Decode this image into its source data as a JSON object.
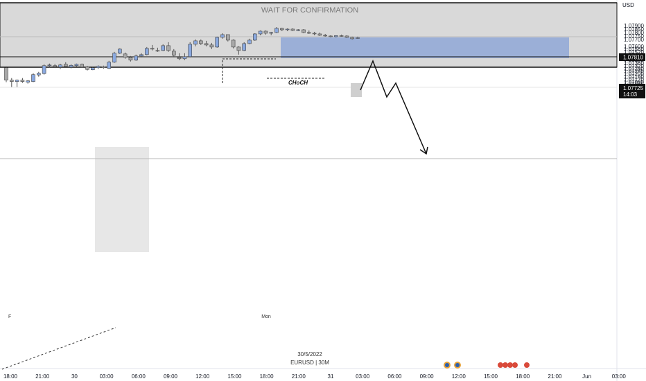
{
  "symbol_info": "EURUSD | 30M",
  "date_label": "30/5/2022",
  "banner_text": "WAIT FOR CONFIRMATION",
  "currency": "USD",
  "choch_label": "CHoCH",
  "day_marker": "Mon",
  "f_marker": "F",
  "current_price_label": "1.07725",
  "countdown_label": "14:03",
  "level_label": "1.07810",
  "colors": {
    "bullish": "#8aa9e0",
    "bearish": "#a8a8a8",
    "zone_grey": "#d2d2d2",
    "zone_blue": "#8fa7d6",
    "line": "#111111"
  },
  "chart_data": {
    "type": "candlestick",
    "title": "",
    "xlabel": "",
    "ylabel": "",
    "ylim": [
      1.06925,
      1.07955
    ],
    "y_ticks": [
      "1.07900",
      "1.07850",
      "1.07800",
      "1.07750",
      "1.07700",
      "1.07600",
      "1.07560",
      "1.07520",
      "1.07480",
      "1.07440",
      "1.07400",
      "1.07360",
      "1.07320",
      "1.07280",
      "1.07240",
      "1.07200",
      "1.07160",
      "1.07120",
      "1.07080",
      "1.07045",
      "1.07010",
      "1.06975",
      "1.06943"
    ],
    "x_ticks": [
      "18:00",
      "21:00",
      "30",
      "03:00",
      "06:00",
      "09:00",
      "12:00",
      "15:00",
      "18:00",
      "21:00",
      "31",
      "03:00",
      "06:00",
      "09:00",
      "12:00",
      "15:00",
      "18:00",
      "21:00",
      "Jun",
      "03:00"
    ],
    "grid": false,
    "candles": [
      {
        "o": 1.0729,
        "h": 1.0731,
        "l": 1.0708,
        "c": 1.0711
      },
      {
        "o": 1.0711,
        "h": 1.0714,
        "l": 1.0701,
        "c": 1.0709
      },
      {
        "o": 1.0709,
        "h": 1.0712,
        "l": 1.0701,
        "c": 1.0711
      },
      {
        "o": 1.0711,
        "h": 1.0714,
        "l": 1.0707,
        "c": 1.0709
      },
      {
        "o": 1.0708,
        "h": 1.0711,
        "l": 1.0706,
        "c": 1.071
      },
      {
        "o": 1.0709,
        "h": 1.0721,
        "l": 1.0708,
        "c": 1.0719
      },
      {
        "o": 1.07185,
        "h": 1.0723,
        "l": 1.0716,
        "c": 1.0721
      },
      {
        "o": 1.07205,
        "h": 1.0734,
        "l": 1.0719,
        "c": 1.0732
      },
      {
        "o": 1.0732,
        "h": 1.0735,
        "l": 1.0729,
        "c": 1.0733
      },
      {
        "o": 1.0732,
        "h": 1.07345,
        "l": 1.07285,
        "c": 1.07305
      },
      {
        "o": 1.073,
        "h": 1.07345,
        "l": 1.0727,
        "c": 1.0733
      },
      {
        "o": 1.0734,
        "h": 1.0737,
        "l": 1.073,
        "c": 1.0731
      },
      {
        "o": 1.073,
        "h": 1.0734,
        "l": 1.0728,
        "c": 1.07325
      },
      {
        "o": 1.0732,
        "h": 1.0735,
        "l": 1.073,
        "c": 1.0734
      },
      {
        "o": 1.0734,
        "h": 1.0735,
        "l": 1.0729,
        "c": 1.073
      },
      {
        "o": 1.073,
        "h": 1.07315,
        "l": 1.0725,
        "c": 1.07265
      },
      {
        "o": 1.0726,
        "h": 1.073,
        "l": 1.07255,
        "c": 1.0729
      },
      {
        "o": 1.0729,
        "h": 1.07325,
        "l": 1.0727,
        "c": 1.0731
      },
      {
        "o": 1.07305,
        "h": 1.0732,
        "l": 1.07275,
        "c": 1.0729
      },
      {
        "o": 1.0728,
        "h": 1.0739,
        "l": 1.0727,
        "c": 1.0737
      },
      {
        "o": 1.0737,
        "h": 1.0752,
        "l": 1.0736,
        "c": 1.075
      },
      {
        "o": 1.075,
        "h": 1.0757,
        "l": 1.0749,
        "c": 1.0756
      },
      {
        "o": 1.0749,
        "h": 1.0751,
        "l": 1.0742,
        "c": 1.0744
      },
      {
        "o": 1.0744,
        "h": 1.0746,
        "l": 1.0738,
        "c": 1.074
      },
      {
        "o": 1.074,
        "h": 1.0748,
        "l": 1.0739,
        "c": 1.0746
      },
      {
        "o": 1.0746,
        "h": 1.075,
        "l": 1.0744,
        "c": 1.0748
      },
      {
        "o": 1.0748,
        "h": 1.0759,
        "l": 1.0747,
        "c": 1.0757
      },
      {
        "o": 1.0757,
        "h": 1.0762,
        "l": 1.0754,
        "c": 1.0756
      },
      {
        "o": 1.0754,
        "h": 1.0758,
        "l": 1.0752,
        "c": 1.0753
      },
      {
        "o": 1.0754,
        "h": 1.0763,
        "l": 1.0753,
        "c": 1.0761
      },
      {
        "o": 1.0761,
        "h": 1.0766,
        "l": 1.0752,
        "c": 1.0754
      },
      {
        "o": 1.0753,
        "h": 1.0756,
        "l": 1.0744,
        "c": 1.0747
      },
      {
        "o": 1.0744,
        "h": 1.075,
        "l": 1.074,
        "c": 1.0742
      },
      {
        "o": 1.0742,
        "h": 1.075,
        "l": 1.074,
        "c": 1.0745
      },
      {
        "o": 1.0745,
        "h": 1.0766,
        "l": 1.0744,
        "c": 1.0763
      },
      {
        "o": 1.0763,
        "h": 1.077,
        "l": 1.076,
        "c": 1.0768
      },
      {
        "o": 1.0768,
        "h": 1.077,
        "l": 1.0762,
        "c": 1.0764
      },
      {
        "o": 1.0764,
        "h": 1.0768,
        "l": 1.076,
        "c": 1.0762
      },
      {
        "o": 1.0762,
        "h": 1.0765,
        "l": 1.0756,
        "c": 1.0759
      },
      {
        "o": 1.0759,
        "h": 1.0774,
        "l": 1.0758,
        "c": 1.0773
      },
      {
        "o": 1.0773,
        "h": 1.0779,
        "l": 1.0771,
        "c": 1.0777
      },
      {
        "o": 1.0777,
        "h": 1.0777,
        "l": 1.0767,
        "c": 1.0769
      },
      {
        "o": 1.0769,
        "h": 1.077,
        "l": 1.0757,
        "c": 1.0759
      },
      {
        "o": 1.0759,
        "h": 1.076,
        "l": 1.0748,
        "c": 1.0754
      },
      {
        "o": 1.0754,
        "h": 1.0766,
        "l": 1.0753,
        "c": 1.0764
      },
      {
        "o": 1.0764,
        "h": 1.0771,
        "l": 1.0763,
        "c": 1.0769
      },
      {
        "o": 1.0769,
        "h": 1.0779,
        "l": 1.0768,
        "c": 1.0778
      },
      {
        "o": 1.0778,
        "h": 1.0783,
        "l": 1.0776,
        "c": 1.0782
      },
      {
        "o": 1.0782,
        "h": 1.0783,
        "l": 1.0777,
        "c": 1.0779
      },
      {
        "o": 1.0779,
        "h": 1.0781,
        "l": 1.0776,
        "c": 1.078
      },
      {
        "o": 1.078,
        "h": 1.0788,
        "l": 1.0779,
        "c": 1.0786
      },
      {
        "o": 1.0786,
        "h": 1.0787,
        "l": 1.0782,
        "c": 1.0784
      },
      {
        "o": 1.0784,
        "h": 1.0786,
        "l": 1.0782,
        "c": 1.0785
      },
      {
        "o": 1.0785,
        "h": 1.0786,
        "l": 1.0782,
        "c": 1.0783
      },
      {
        "o": 1.0783,
        "h": 1.0785,
        "l": 1.0782,
        "c": 1.0784
      },
      {
        "o": 1.0784,
        "h": 1.0785,
        "l": 1.0779,
        "c": 1.078
      },
      {
        "o": 1.078,
        "h": 1.0783,
        "l": 1.0778,
        "c": 1.0779
      },
      {
        "o": 1.0779,
        "h": 1.0781,
        "l": 1.0776,
        "c": 1.0778
      },
      {
        "o": 1.0778,
        "h": 1.078,
        "l": 1.0775,
        "c": 1.0776
      },
      {
        "o": 1.0776,
        "h": 1.0778,
        "l": 1.0774,
        "c": 1.0775
      },
      {
        "o": 1.0775,
        "h": 1.0776,
        "l": 1.0773,
        "c": 1.07745
      },
      {
        "o": 1.0774,
        "h": 1.0776,
        "l": 1.0773,
        "c": 1.07755
      },
      {
        "o": 1.07755,
        "h": 1.0777,
        "l": 1.0774,
        "c": 1.0775
      },
      {
        "o": 1.0775,
        "h": 1.0776,
        "l": 1.0772,
        "c": 1.0773
      },
      {
        "o": 1.0773,
        "h": 1.0774,
        "l": 1.077,
        "c": 1.0771
      },
      {
        "o": 1.07715,
        "h": 1.0774,
        "l": 1.0771,
        "c": 1.07725
      }
    ]
  }
}
